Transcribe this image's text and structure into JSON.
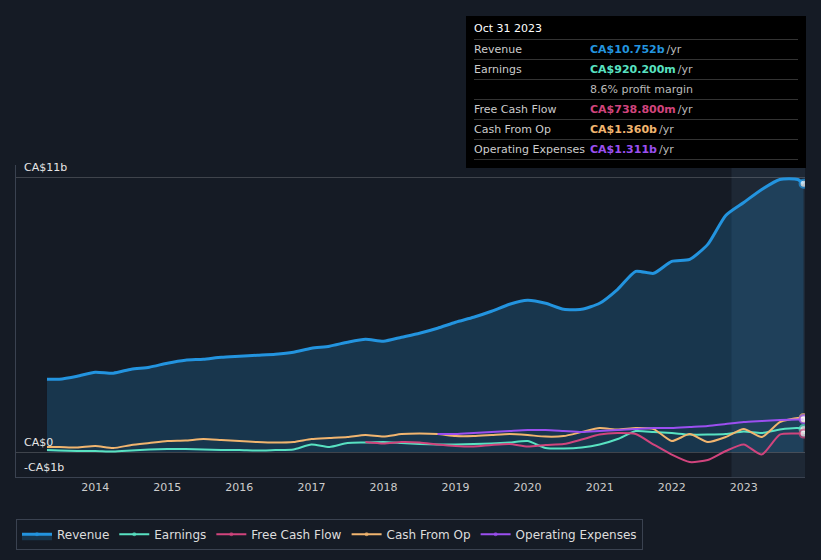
{
  "chart_data": {
    "type": "line",
    "x": [
      2013.33,
      2013.5,
      2013.75,
      2014,
      2014.25,
      2014.5,
      2014.75,
      2015,
      2015.25,
      2015.5,
      2015.75,
      2016,
      2016.25,
      2016.5,
      2016.75,
      2017,
      2017.25,
      2017.5,
      2017.75,
      2018,
      2018.25,
      2018.5,
      2018.75,
      2019,
      2019.25,
      2019.5,
      2019.75,
      2020,
      2020.25,
      2020.5,
      2020.75,
      2021,
      2021.25,
      2021.5,
      2021.75,
      2022,
      2022.25,
      2022.5,
      2022.75,
      2023,
      2023.25,
      2023.5,
      2023.75,
      2023.83
    ],
    "series": [
      {
        "name": "Revenue",
        "color": "#2394df",
        "type": "area",
        "values": [
          2.92,
          2.92,
          3.04,
          3.2,
          3.16,
          3.32,
          3.4,
          3.56,
          3.68,
          3.72,
          3.8,
          3.84,
          3.88,
          3.92,
          4.0,
          4.16,
          4.24,
          4.4,
          4.52,
          4.44,
          4.6,
          4.76,
          4.96,
          5.2,
          5.4,
          5.64,
          5.92,
          6.08,
          5.96,
          5.72,
          5.72,
          5.96,
          6.52,
          7.24,
          7.16,
          7.64,
          7.72,
          8.32,
          9.48,
          10.0,
          10.52,
          10.92,
          10.92,
          10.752
        ]
      },
      {
        "name": "Earnings",
        "color": "#58e2c2",
        "type": "line",
        "values": [
          0.08,
          0.06,
          0.04,
          0.04,
          0.02,
          0.06,
          0.1,
          0.12,
          0.12,
          0.1,
          0.08,
          0.08,
          0.06,
          0.08,
          0.1,
          0.3,
          0.2,
          0.36,
          0.38,
          0.4,
          0.36,
          0.32,
          0.3,
          0.3,
          0.32,
          0.34,
          0.38,
          0.44,
          0.16,
          0.14,
          0.18,
          0.3,
          0.52,
          0.84,
          0.8,
          0.76,
          0.7,
          0.7,
          0.72,
          0.82,
          0.76,
          0.9,
          0.96,
          0.9202
        ]
      },
      {
        "name": "Free Cash Flow",
        "color": "#d1447d",
        "type": "line",
        "values": [
          null,
          null,
          null,
          null,
          null,
          null,
          null,
          null,
          null,
          null,
          null,
          null,
          null,
          null,
          null,
          null,
          null,
          null,
          0.4,
          0.34,
          0.4,
          0.38,
          0.3,
          0.24,
          0.22,
          0.28,
          0.32,
          0.22,
          0.28,
          0.32,
          0.5,
          0.7,
          0.76,
          0.72,
          0.3,
          -0.1,
          -0.4,
          -0.32,
          0.04,
          0.3,
          -0.1,
          0.7,
          0.74,
          0.7388
        ]
      },
      {
        "name": "Cash From Op",
        "color": "#f1b56f",
        "type": "line",
        "values": [
          0.2,
          0.2,
          0.18,
          0.24,
          0.16,
          0.28,
          0.36,
          0.44,
          0.46,
          0.52,
          0.48,
          0.44,
          0.4,
          0.38,
          0.4,
          0.52,
          0.56,
          0.6,
          0.68,
          0.62,
          0.72,
          0.74,
          0.72,
          0.64,
          0.64,
          0.68,
          0.72,
          0.68,
          0.62,
          0.64,
          0.8,
          0.96,
          0.9,
          0.96,
          0.92,
          0.44,
          0.72,
          0.4,
          0.6,
          0.92,
          0.6,
          1.2,
          1.36,
          1.36
        ]
      },
      {
        "name": "Operating Expenses",
        "color": "#9b4ff0",
        "type": "line",
        "values": [
          null,
          null,
          null,
          null,
          null,
          null,
          null,
          null,
          null,
          null,
          null,
          null,
          null,
          null,
          null,
          null,
          null,
          null,
          null,
          null,
          null,
          null,
          0.72,
          0.72,
          0.76,
          0.8,
          0.84,
          0.88,
          0.88,
          0.84,
          0.8,
          0.84,
          0.88,
          0.92,
          0.96,
          0.96,
          1.0,
          1.04,
          1.12,
          1.2,
          1.24,
          1.28,
          1.3,
          1.311
        ]
      }
    ],
    "xlim": [
      2012.9,
      2023.85
    ],
    "xticks": [
      2014,
      2015,
      2016,
      2017,
      2018,
      2019,
      2020,
      2021,
      2022,
      2023
    ],
    "ylim": [
      -1,
      11.5
    ],
    "yticks": [
      {
        "value": 11,
        "label": "CA$11b"
      },
      {
        "value": 0,
        "label": "CA$0"
      },
      {
        "value": -1,
        "label": "-CA$1b"
      }
    ],
    "grid": true,
    "legend": "bottom",
    "shaded_x": [
      2022.83,
      2023.85
    ],
    "tooltip": {
      "title": "Oct 31 2023",
      "rows": [
        {
          "label": "Revenue",
          "value": "CA$10.752b",
          "unit": "/yr"
        },
        {
          "label": "Earnings",
          "value": "CA$920.200m",
          "unit": "/yr",
          "note": "8.6% profit margin"
        },
        {
          "label": "Free Cash Flow",
          "value": "CA$738.800m",
          "unit": "/yr"
        },
        {
          "label": "Cash From Op",
          "value": "CA$1.360b",
          "unit": "/yr"
        },
        {
          "label": "Operating Expenses",
          "value": "CA$1.311b",
          "unit": "/yr"
        }
      ]
    }
  }
}
